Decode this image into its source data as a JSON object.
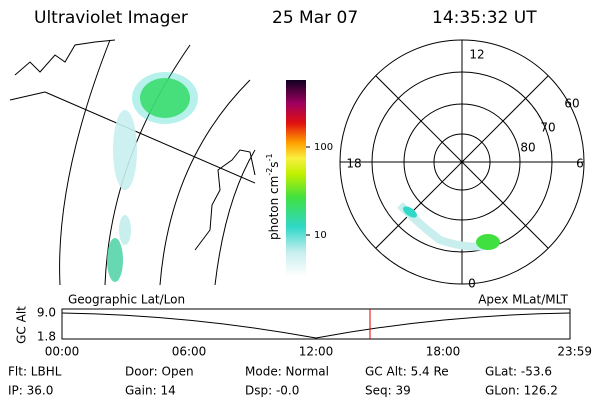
{
  "header": {
    "title": "Ultraviolet Imager",
    "date": "25 Mar 07",
    "time": "14:35:32 UT"
  },
  "colorbar": {
    "unit": "photon cm",
    "exp1": "-2",
    "unit2": "s",
    "exp2": "-1",
    "ticks": [
      "100",
      "10"
    ]
  },
  "polar": {
    "mlt_labels": [
      "12",
      "18",
      "6",
      "0"
    ],
    "lat_labels": [
      "60",
      "70",
      "80"
    ]
  },
  "timeline": {
    "left_label": "Geographic Lat/Lon",
    "right_label": "Apex MLat/MLT",
    "axis_label": "GC Alt",
    "alt_ticks": [
      "9.0",
      "1.8"
    ],
    "time_ticks": [
      "00:00",
      "06:00",
      "12:00",
      "18:00",
      "23:59"
    ]
  },
  "status": {
    "rows": [
      [
        "Flt: LBHL",
        "Door: Open",
        "Mode: Normal",
        "GC Alt: 5.4 Re",
        "GLat: -53.6"
      ],
      [
        "IP: 36.0",
        "Gain: 14",
        "Dsp: -0.0",
        "Seq: 39",
        "GLon: 126.2"
      ]
    ]
  }
}
